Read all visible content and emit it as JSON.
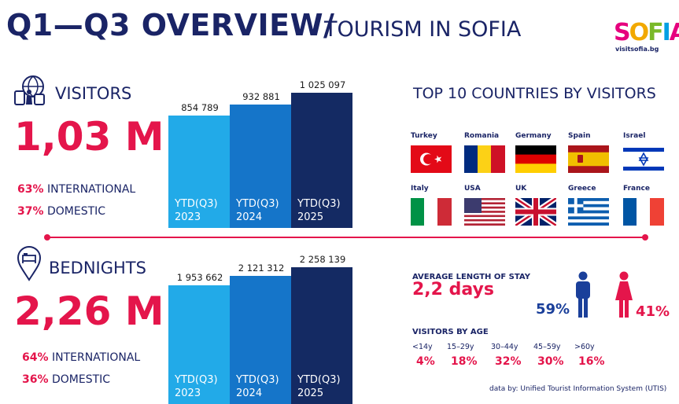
{
  "header": {
    "title": "Q1—Q3 OVERVIEW/",
    "subtitle": "TOURISM IN SOFIA"
  },
  "logo": {
    "letters": [
      "S",
      "O",
      "F",
      "I",
      "A"
    ],
    "url": "visitsofia.bg"
  },
  "visitors": {
    "label": "VISITORS",
    "total": "1,03 M",
    "international_pct": "63%",
    "international_label": "INTERNATIONAL",
    "domestic_pct": "37%",
    "domestic_label": "DOMESTIC",
    "chart_data": {
      "type": "bar",
      "categories": [
        "YTD(Q3) 2023",
        "YTD(Q3) 2024",
        "YTD(Q3) 2025"
      ],
      "values": [
        854789,
        932881,
        1025097
      ],
      "value_labels": [
        "854 789",
        "932 881",
        "1 025 097"
      ],
      "bar_labels": [
        [
          "YTD(Q3)",
          "2023"
        ],
        [
          "YTD(Q3)",
          "2024"
        ],
        [
          "YTD(Q3)",
          "2025"
        ]
      ],
      "colors": [
        "#22aae8",
        "#1575c9",
        "#142a63"
      ]
    }
  },
  "bednights": {
    "label": "BEDNIGHTS",
    "total": "2,26 M",
    "international_pct": "64%",
    "international_label": "INTERNATIONAL",
    "domestic_pct": "36%",
    "domestic_label": "DOMESTIC",
    "chart_data": {
      "type": "bar",
      "categories": [
        "YTD(Q3) 2023",
        "YTD(Q3) 2024",
        "YTD(Q3) 2025"
      ],
      "values": [
        1953662,
        2121312,
        2258139
      ],
      "value_labels": [
        "1 953 662",
        "2 121 312",
        "2 258 139"
      ],
      "bar_labels": [
        [
          "YTD(Q3)",
          "2023"
        ],
        [
          "YTD(Q3)",
          "2024"
        ],
        [
          "YTD(Q3)",
          "2025"
        ]
      ],
      "colors": [
        "#22aae8",
        "#1575c9",
        "#142a63"
      ]
    }
  },
  "countries": {
    "title": "TOP 10 COUNTRIES BY VISITORS",
    "items": [
      {
        "name": "Turkey",
        "flag": "turkey-flag"
      },
      {
        "name": "Romania",
        "flag": "romania-flag"
      },
      {
        "name": "Germany",
        "flag": "germany-flag"
      },
      {
        "name": "Spain",
        "flag": "spain-flag"
      },
      {
        "name": "Israel",
        "flag": "israel-flag"
      },
      {
        "name": "Italy",
        "flag": "italy-flag"
      },
      {
        "name": "USA",
        "flag": "usa-flag"
      },
      {
        "name": "UK",
        "flag": "uk-flag"
      },
      {
        "name": "Greece",
        "flag": "greece-flag"
      },
      {
        "name": "France",
        "flag": "france-flag"
      }
    ]
  },
  "stay": {
    "label": "AVERAGE LENGTH OF STAY",
    "value": "2,2 days"
  },
  "gender": {
    "male_pct": "59%",
    "female_pct": "41%",
    "male_color": "#1a3f9a",
    "female_color": "#e4154b"
  },
  "age": {
    "label": "VISITORS BY AGE",
    "groups": [
      {
        "label": "<14y",
        "value": "4%"
      },
      {
        "label": "15–29y",
        "value": "18%"
      },
      {
        "label": "30–44y",
        "value": "32%"
      },
      {
        "label": "45–59y",
        "value": "30%"
      },
      {
        "label": ">60y",
        "value": "16%"
      }
    ]
  },
  "source": "data by: Unified Tourist Information System (UTIS)",
  "colors": {
    "navy": "#1a2466",
    "accent": "#e4154b"
  }
}
